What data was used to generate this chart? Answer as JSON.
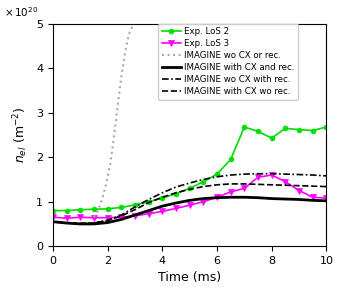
{
  "title": "",
  "xlabel": "Time (ms)",
  "xlim": [
    0,
    10
  ],
  "ylim": [
    0,
    5e+20
  ],
  "exp_los2_x": [
    0.0,
    0.5,
    1.0,
    1.5,
    2.0,
    2.5,
    3.0,
    3.5,
    4.0,
    4.5,
    5.0,
    5.5,
    6.0,
    6.5,
    7.0,
    7.5,
    8.0,
    8.5,
    9.0,
    9.5,
    10.0
  ],
  "exp_los2_y": [
    8e+19,
    8e+19,
    8.2e+19,
    8.3e+19,
    8.4e+19,
    8.7e+19,
    9.3e+19,
    1e+20,
    1.08e+20,
    1.18e+20,
    1.3e+20,
    1.45e+20,
    1.62e+20,
    1.95e+20,
    2.68e+20,
    2.58e+20,
    2.43e+20,
    2.65e+20,
    2.62e+20,
    2.6e+20,
    2.68e+20
  ],
  "exp_los3_x": [
    0.0,
    0.5,
    1.0,
    1.5,
    2.0,
    2.5,
    3.0,
    3.5,
    4.0,
    4.5,
    5.0,
    5.5,
    6.0,
    6.5,
    7.0,
    7.5,
    8.0,
    8.5,
    9.0,
    9.5,
    10.0
  ],
  "exp_los3_y": [
    6.5e+19,
    6.3e+19,
    6.5e+19,
    6.4e+19,
    6.4e+19,
    6.5e+19,
    6.8e+19,
    7.3e+19,
    7.8e+19,
    8.5e+19,
    9.2e+19,
    1e+20,
    1.1e+20,
    1.22e+20,
    1.3e+20,
    1.55e+20,
    1.6e+20,
    1.45e+20,
    1.25e+20,
    1.1e+20,
    1.08e+20
  ],
  "imagine_wo_cx_or_rec_x": [
    1.5,
    1.65,
    1.8,
    1.95,
    2.1,
    2.2,
    2.3,
    2.4,
    2.5,
    2.6,
    2.7,
    2.8,
    2.9,
    3.0
  ],
  "imagine_wo_cx_or_rec_y": [
    6.5e+19,
    8e+19,
    1.05e+20,
    1.4e+20,
    1.85e+20,
    2.3e+20,
    2.8e+20,
    3.3e+20,
    3.8e+20,
    4.2e+20,
    4.55e+20,
    4.8e+20,
    4.93e+20,
    5e+20
  ],
  "imagine_with_cx_rec_x": [
    0.0,
    0.5,
    1.0,
    1.5,
    2.0,
    2.5,
    3.0,
    3.5,
    4.0,
    4.5,
    5.0,
    5.5,
    6.0,
    6.5,
    7.0,
    7.5,
    8.0,
    8.5,
    9.0,
    9.5,
    10.0
  ],
  "imagine_with_cx_rec_y": [
    5.5e+19,
    5.2e+19,
    5e+19,
    5e+19,
    5.3e+19,
    6e+19,
    7e+19,
    8e+19,
    9e+19,
    9.7e+19,
    1.03e+20,
    1.07e+20,
    1.09e+20,
    1.1e+20,
    1.1e+20,
    1.09e+20,
    1.07e+20,
    1.06e+20,
    1.05e+20,
    1.03e+20,
    1.02e+20
  ],
  "imagine_wo_cx_with_rec_x": [
    0.0,
    0.5,
    1.0,
    1.5,
    2.0,
    2.5,
    3.0,
    3.5,
    4.0,
    4.5,
    5.0,
    5.5,
    6.0,
    6.5,
    7.0,
    7.5,
    8.0,
    8.5,
    9.0,
    9.5,
    10.0
  ],
  "imagine_wo_cx_with_rec_y": [
    5.5e+19,
    5.2e+19,
    5.1e+19,
    5.2e+19,
    5.8e+19,
    7e+19,
    8.8e+19,
    1.05e+20,
    1.2e+20,
    1.33e+20,
    1.42e+20,
    1.5e+20,
    1.56e+20,
    1.6e+20,
    1.62e+20,
    1.63e+20,
    1.63e+20,
    1.62e+20,
    1.61e+20,
    1.6e+20,
    1.58e+20
  ],
  "imagine_with_cx_wo_rec_x": [
    0.0,
    0.5,
    1.0,
    1.5,
    2.0,
    2.5,
    3.0,
    3.5,
    4.0,
    4.5,
    5.0,
    5.5,
    6.0,
    6.5,
    7.0,
    7.5,
    8.0,
    8.5,
    9.0,
    9.5,
    10.0
  ],
  "imagine_with_cx_wo_rec_y": [
    5.5e+19,
    5.2e+19,
    5.1e+19,
    5.2e+19,
    5.8e+19,
    6.8e+19,
    8.2e+19,
    9.8e+19,
    1.1e+20,
    1.2e+20,
    1.28e+20,
    1.34e+20,
    1.38e+20,
    1.4e+20,
    1.4e+20,
    1.39e+20,
    1.38e+20,
    1.37e+20,
    1.36e+20,
    1.35e+20,
    1.34e+20
  ],
  "color_los2": "#00dd00",
  "color_los3": "#ff00ff",
  "color_wo_cx_or_rec": "#aaaaaa",
  "color_black": "#000000",
  "legend_labels": [
    "Exp. LoS 2",
    "Exp. LoS 3",
    "IMAGINE wo CX or rec.",
    "IMAGINE with CX and rec.",
    "IMAGINE wo CX with rec.",
    "IMAGINE with CX wo rec."
  ]
}
